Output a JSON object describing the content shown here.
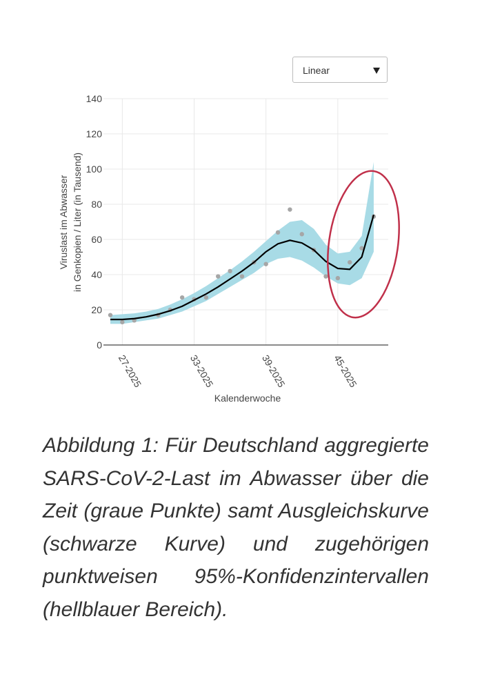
{
  "dropdown": {
    "selected": "Linear"
  },
  "caption": "Abbildung 1: Für Deutschland aggregierte SARS-CoV-2-Last im Abwasser über die Zeit (graue Punkte) samt Ausgleichskurve (schwarze Kurve) und zugehörigen punktweisen 95%-Konfidenzintervallen (hellblauer Bereich).",
  "chart_data": {
    "type": "line",
    "x_label": "Kalenderwoche",
    "y_label": [
      "Viruslast im Abwasser",
      "in Genkopien / Liter (in Tausend)"
    ],
    "categories": [
      null,
      "27-2025",
      null,
      null,
      null,
      null,
      null,
      "33-2025",
      null,
      null,
      null,
      null,
      null,
      "39-2025",
      null,
      null,
      null,
      null,
      null,
      "45-2025",
      null,
      null,
      null
    ],
    "points": {
      "color": "#a6a6a6",
      "values": [
        17,
        13,
        14,
        null,
        17,
        20,
        27,
        26,
        27,
        39,
        42,
        39,
        47,
        46,
        64,
        77,
        63,
        54,
        39,
        38,
        47,
        55,
        73
      ]
    },
    "fit": {
      "color": "#000000",
      "values": [
        14.5,
        14.5,
        15,
        16,
        17.5,
        19.5,
        22,
        25.5,
        29,
        33,
        37.5,
        42,
        47,
        53,
        57.5,
        59.5,
        58,
        54,
        47.5,
        43.5,
        43,
        50,
        74
      ]
    },
    "band": {
      "color": "#a8dbe6",
      "lower": [
        12,
        12,
        13,
        14,
        15,
        17,
        19,
        22,
        25,
        29,
        33,
        37,
        41,
        46,
        49,
        50,
        48,
        44,
        39,
        35,
        34,
        38,
        53
      ],
      "upper": [
        17,
        17.5,
        18,
        19,
        20.5,
        23,
        26,
        29.5,
        33.5,
        38,
        42.5,
        47.5,
        53,
        59,
        65,
        70,
        71,
        66,
        57,
        52,
        53,
        62,
        104
      ]
    },
    "ylim": [
      0,
      140
    ],
    "yticks": [
      0,
      20,
      40,
      60,
      80,
      100,
      120,
      140
    ],
    "grid": true
  }
}
